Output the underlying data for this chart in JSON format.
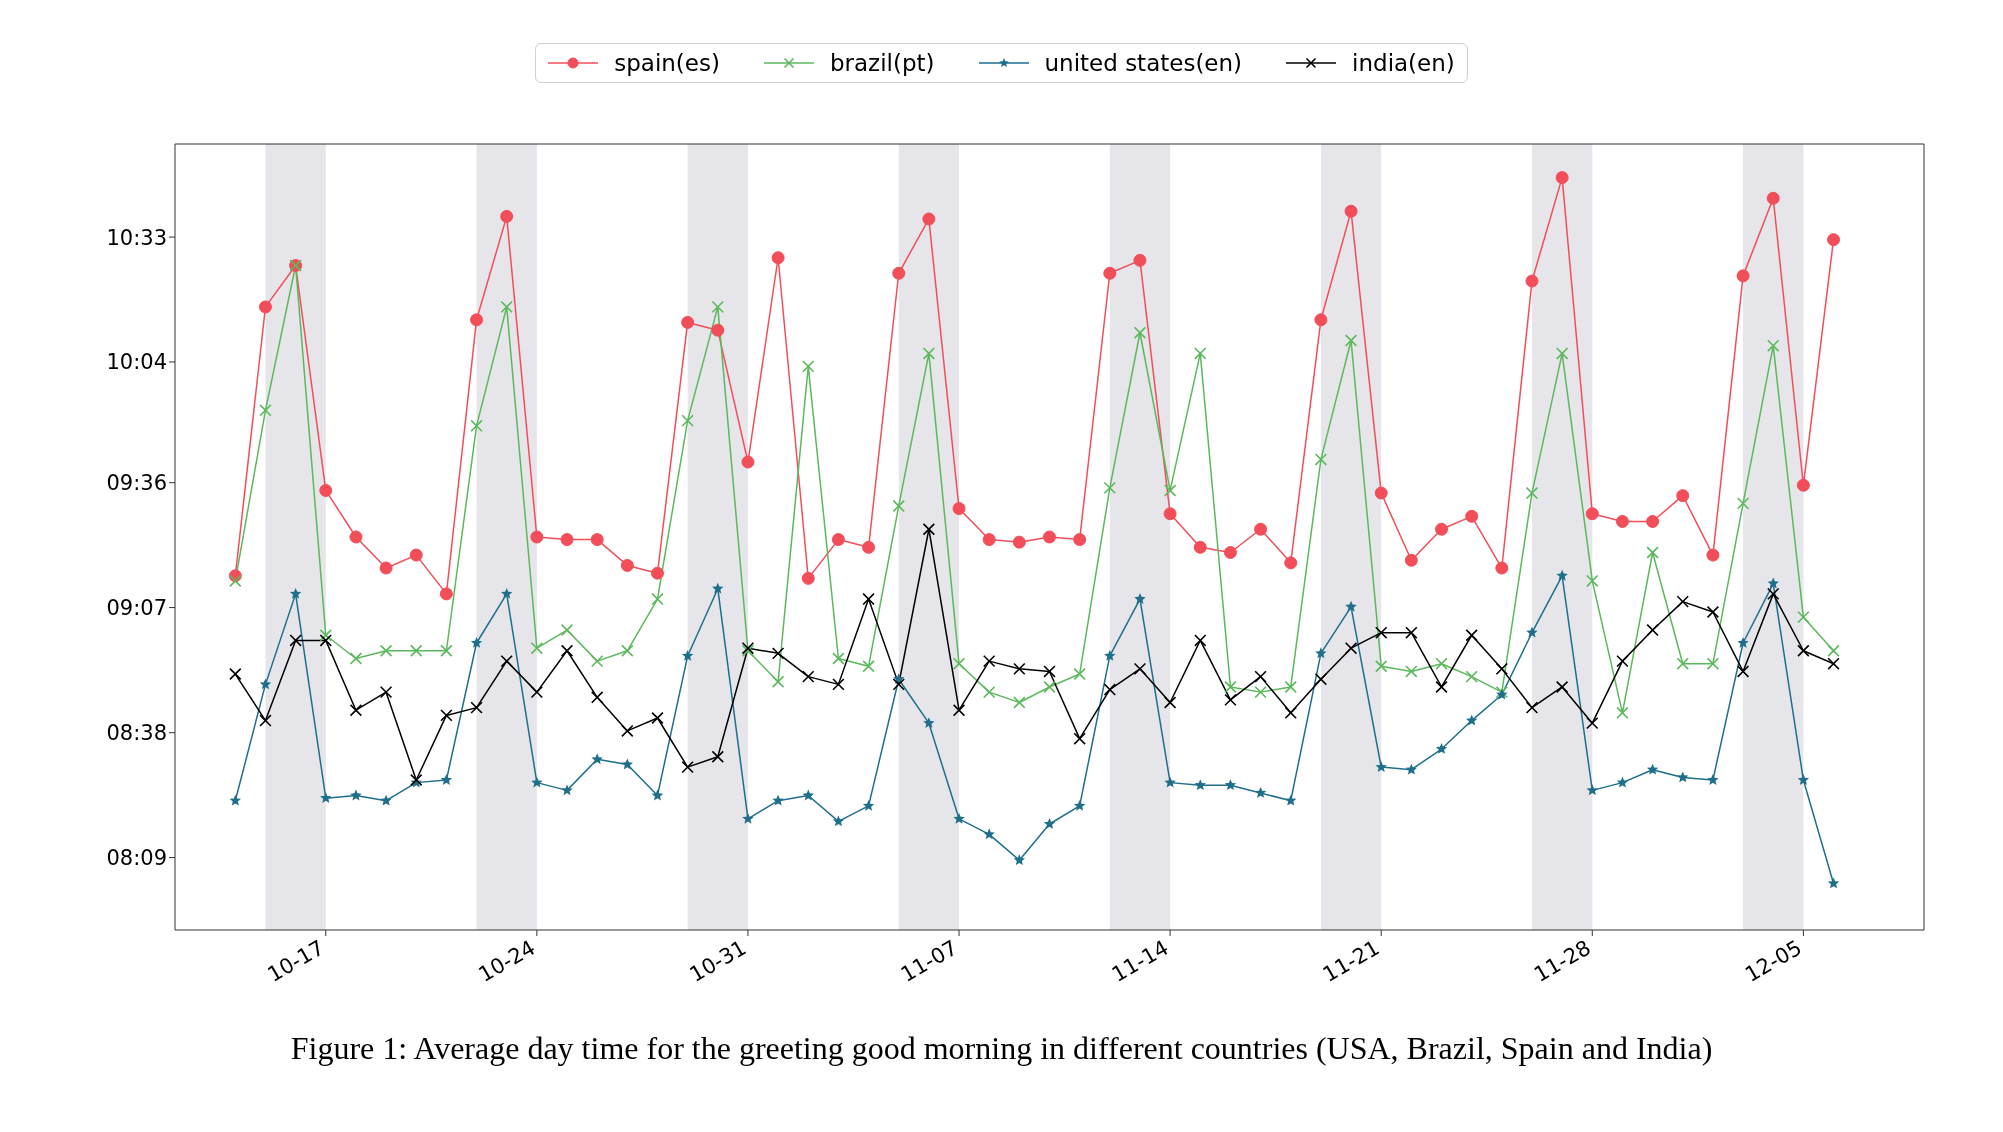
{
  "chart_data": {
    "type": "line",
    "x": [
      "--10-14",
      "--10-15",
      "--10-16",
      "--10-17",
      "--10-18",
      "--10-19",
      "--10-20",
      "--10-21",
      "--10-22",
      "--10-23",
      "--10-24",
      "--10-25",
      "--10-26",
      "--10-27",
      "--10-28",
      "--10-29",
      "--10-30",
      "--10-31",
      "--11-01",
      "--11-02",
      "--11-03",
      "--11-04",
      "--11-05",
      "--11-06",
      "--11-07",
      "--11-08",
      "--11-09",
      "--11-10",
      "--11-11",
      "--11-12",
      "--11-13",
      "--11-14",
      "--11-15",
      "--11-16",
      "--11-17",
      "--11-18",
      "--11-19",
      "--11-20",
      "--11-21",
      "--11-22",
      "--11-23",
      "--11-24",
      "--11-25",
      "--11-26",
      "--11-27",
      "--11-28",
      "--11-29",
      "--11-30",
      "--12-01",
      "--12-02",
      "--12-03",
      "--12-04",
      "--12-05",
      "--12-06"
    ],
    "series": [
      {
        "name": "spain(es)",
        "color": "#f24e5a",
        "marker": "circle",
        "values": [
          9.24,
          10.28,
          10.44,
          9.57,
          9.39,
          9.27,
          9.32,
          9.17,
          10.23,
          10.63,
          9.39,
          9.38,
          9.38,
          9.28,
          9.25,
          10.22,
          10.19,
          9.68,
          10.47,
          9.23,
          9.38,
          9.35,
          10.41,
          10.62,
          9.5,
          9.38,
          9.37,
          9.39,
          9.38,
          10.41,
          10.46,
          9.48,
          9.35,
          9.33,
          9.42,
          9.29,
          10.23,
          10.65,
          9.56,
          9.3,
          9.42,
          9.47,
          9.27,
          10.38,
          10.78,
          9.48,
          9.45,
          9.45,
          9.55,
          9.32,
          10.4,
          10.7,
          9.59,
          10.54
        ]
      },
      {
        "name": "brazil(pt)",
        "color": "#5cb85c",
        "marker": "cross",
        "values": [
          9.22,
          9.88,
          10.44,
          9.01,
          8.92,
          8.95,
          8.95,
          8.95,
          9.82,
          10.28,
          8.96,
          9.03,
          8.91,
          8.95,
          9.15,
          9.84,
          10.28,
          8.95,
          8.83,
          10.05,
          8.92,
          8.89,
          9.51,
          10.1,
          8.9,
          8.79,
          8.75,
          8.81,
          8.86,
          9.58,
          10.18,
          9.57,
          10.1,
          8.81,
          8.79,
          8.81,
          9.69,
          10.15,
          8.89,
          8.87,
          8.9,
          8.85,
          8.79,
          9.56,
          10.1,
          9.22,
          8.71,
          9.33,
          8.9,
          8.9,
          9.52,
          10.13,
          9.08,
          8.95
        ]
      },
      {
        "name": "united states(en)",
        "color": "#1f6f8b",
        "marker": "star",
        "values": [
          8.37,
          8.82,
          9.17,
          8.38,
          8.39,
          8.37,
          8.44,
          8.45,
          8.98,
          9.17,
          8.44,
          8.41,
          8.53,
          8.51,
          8.39,
          8.93,
          9.19,
          8.3,
          8.37,
          8.39,
          8.29,
          8.35,
          8.84,
          8.67,
          8.3,
          8.24,
          8.14,
          8.28,
          8.35,
          8.93,
          9.15,
          8.44,
          8.43,
          8.43,
          8.4,
          8.37,
          8.94,
          9.12,
          8.5,
          8.49,
          8.57,
          8.68,
          8.78,
          9.02,
          9.24,
          8.41,
          8.44,
          8.49,
          8.46,
          8.45,
          8.98,
          9.21,
          8.45,
          8.05
        ]
      },
      {
        "name": "india(en)",
        "color": "#000000",
        "marker": "cross",
        "values": [
          8.86,
          8.68,
          8.99,
          8.99,
          8.72,
          8.79,
          8.45,
          8.7,
          8.73,
          8.91,
          8.79,
          8.95,
          8.77,
          8.64,
          8.69,
          8.5,
          8.54,
          8.96,
          8.94,
          8.85,
          8.82,
          9.15,
          8.82,
          9.42,
          8.72,
          8.91,
          8.88,
          8.87,
          8.61,
          8.8,
          8.88,
          8.75,
          8.99,
          8.76,
          8.85,
          8.71,
          8.84,
          8.96,
          9.02,
          9.02,
          8.81,
          9.01,
          8.88,
          8.73,
          8.81,
          8.67,
          8.91,
          9.03,
          9.14,
          9.1,
          8.87,
          9.17,
          8.95,
          8.9
        ]
      }
    ],
    "xlim": [
      "--10-12",
      "--12-09"
    ],
    "xticks": [
      {
        "value": "--10-17",
        "label": "10-17"
      },
      {
        "value": "--10-24",
        "label": "10-24"
      },
      {
        "value": "--10-31",
        "label": "10-31"
      },
      {
        "value": "--11-07",
        "label": "11-07"
      },
      {
        "value": "--11-14",
        "label": "11-14"
      },
      {
        "value": "--11-21",
        "label": "11-21"
      },
      {
        "value": "--11-28",
        "label": "11-28"
      },
      {
        "value": "--12-05",
        "label": "12-05"
      }
    ],
    "ylim": [
      7.87,
      10.91
    ],
    "yticks": [
      {
        "value": 8.15,
        "label": "08:09"
      },
      {
        "value": 8.633,
        "label": "08:38"
      },
      {
        "value": 9.117,
        "label": "09:07"
      },
      {
        "value": 9.6,
        "label": "09:36"
      },
      {
        "value": 10.067,
        "label": "10:04"
      },
      {
        "value": 10.55,
        "label": "10:33"
      }
    ],
    "bands": [
      {
        "axis": "x",
        "from": "--10-15",
        "to": "--10-17",
        "color": "#e5e5ea"
      },
      {
        "axis": "x",
        "from": "--10-22",
        "to": "--10-24",
        "color": "#e5e5ea"
      },
      {
        "axis": "x",
        "from": "--10-29",
        "to": "--10-31",
        "color": "#e5e5ea"
      },
      {
        "axis": "x",
        "from": "--11-05",
        "to": "--11-07",
        "color": "#e5e5ea"
      },
      {
        "axis": "x",
        "from": "--11-12",
        "to": "--11-14",
        "color": "#e5e5ea"
      },
      {
        "axis": "x",
        "from": "--11-19",
        "to": "--11-21",
        "color": "#e5e5ea"
      },
      {
        "axis": "x",
        "from": "--11-26",
        "to": "--11-28",
        "color": "#e5e5ea"
      },
      {
        "axis": "x",
        "from": "--12-03",
        "to": "--12-05",
        "color": "#e5e5ea"
      }
    ],
    "grid": false,
    "legend": "top",
    "line_style": "solid",
    "annotations": [
      "Figure 1:   Average day time for the greeting good morning in different countries (USA, Brazil, Spain and India)"
    ]
  }
}
